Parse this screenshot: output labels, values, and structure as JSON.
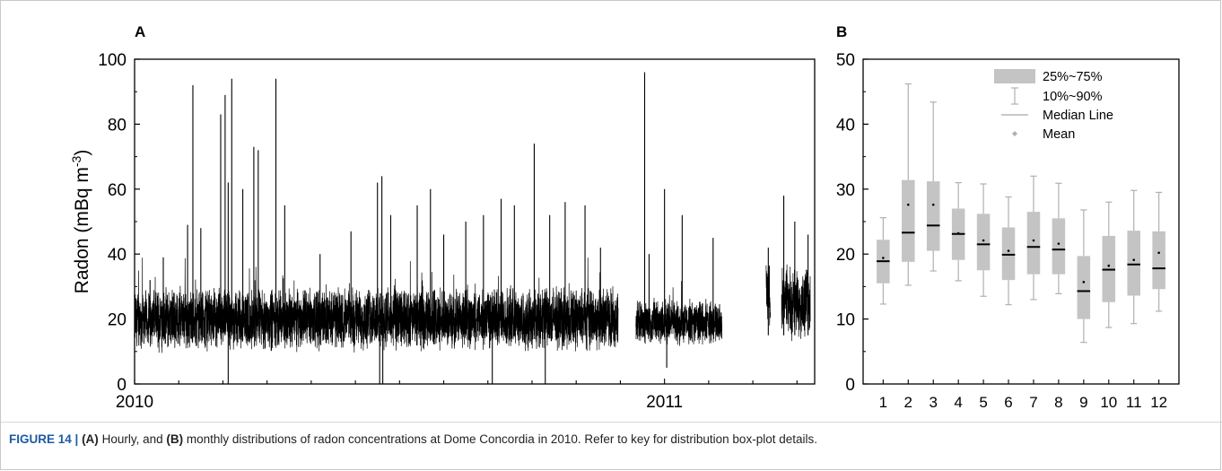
{
  "chart_data": [
    {
      "panel": "A",
      "type": "line",
      "ylabel": "Radon (mBq m-3)",
      "ylabel_main": "Radon (mBq m",
      "ylabel_sup": "-3",
      "ylabel_close": ")",
      "ylim": [
        0,
        100
      ],
      "yticks": [
        "0",
        "20",
        "40",
        "60",
        "80",
        "100"
      ],
      "xticks": [
        "2010",
        "2011"
      ],
      "x_range_months": [
        0,
        15.4
      ],
      "segments": [
        {
          "from": 0.0,
          "to": 10.95,
          "base": 20,
          "noise": 7
        },
        {
          "from": 11.35,
          "to": 13.3,
          "base": 19,
          "noise": 5
        },
        {
          "from": 14.3,
          "to": 14.4,
          "base": 28,
          "noise": 8
        },
        {
          "from": 14.65,
          "to": 15.3,
          "base": 25,
          "noise": 8
        }
      ],
      "spikes": [
        {
          "x": 0.1,
          "y": 20
        },
        {
          "x": 0.35,
          "y": 32
        },
        {
          "x": 0.65,
          "y": 39
        },
        {
          "x": 1.2,
          "y": 49
        },
        {
          "x": 1.32,
          "y": 92
        },
        {
          "x": 1.5,
          "y": 48
        },
        {
          "x": 1.95,
          "y": 83
        },
        {
          "x": 2.05,
          "y": 89
        },
        {
          "x": 2.12,
          "y": 62
        },
        {
          "x": 2.2,
          "y": 94
        },
        {
          "x": 2.45,
          "y": 60
        },
        {
          "x": 2.7,
          "y": 73
        },
        {
          "x": 2.8,
          "y": 72
        },
        {
          "x": 3.2,
          "y": 94
        },
        {
          "x": 3.4,
          "y": 55
        },
        {
          "x": 4.2,
          "y": 40
        },
        {
          "x": 4.9,
          "y": 47
        },
        {
          "x": 5.5,
          "y": 62
        },
        {
          "x": 5.6,
          "y": 64
        },
        {
          "x": 5.8,
          "y": 52
        },
        {
          "x": 6.4,
          "y": 55
        },
        {
          "x": 6.7,
          "y": 60
        },
        {
          "x": 7.0,
          "y": 46
        },
        {
          "x": 7.5,
          "y": 50
        },
        {
          "x": 7.9,
          "y": 52
        },
        {
          "x": 8.3,
          "y": 57
        },
        {
          "x": 8.6,
          "y": 55
        },
        {
          "x": 9.05,
          "y": 74
        },
        {
          "x": 9.4,
          "y": 52
        },
        {
          "x": 9.75,
          "y": 56
        },
        {
          "x": 10.2,
          "y": 55
        },
        {
          "x": 10.55,
          "y": 42
        },
        {
          "x": 11.55,
          "y": 96
        },
        {
          "x": 11.65,
          "y": 40
        },
        {
          "x": 12.0,
          "y": 60
        },
        {
          "x": 12.4,
          "y": 52
        },
        {
          "x": 13.1,
          "y": 45
        },
        {
          "x": 14.35,
          "y": 42
        },
        {
          "x": 14.7,
          "y": 58
        },
        {
          "x": 14.95,
          "y": 50
        },
        {
          "x": 15.25,
          "y": 46
        }
      ],
      "dips": [
        {
          "x": 2.12,
          "y": 0
        },
        {
          "x": 5.55,
          "y": 0
        },
        {
          "x": 5.62,
          "y": 0
        },
        {
          "x": 8.1,
          "y": 0
        },
        {
          "x": 9.3,
          "y": 0
        },
        {
          "x": 12.05,
          "y": 5
        }
      ]
    },
    {
      "panel": "B",
      "type": "box",
      "ylim": [
        0,
        50
      ],
      "yticks": [
        "0",
        "10",
        "20",
        "30",
        "40",
        "50"
      ],
      "categories": [
        "1",
        "2",
        "3",
        "4",
        "5",
        "6",
        "7",
        "8",
        "9",
        "10",
        "11",
        "12"
      ],
      "boxes": [
        {
          "p10": 12.3,
          "q1": 15.5,
          "median": 18.9,
          "q3": 22.2,
          "p90": 25.6,
          "mean": 19.4
        },
        {
          "p10": 15.2,
          "q1": 18.8,
          "median": 23.3,
          "q3": 31.4,
          "p90": 46.2,
          "mean": 27.6
        },
        {
          "p10": 17.4,
          "q1": 20.5,
          "median": 24.4,
          "q3": 31.2,
          "p90": 43.4,
          "mean": 27.6
        },
        {
          "p10": 15.9,
          "q1": 19.1,
          "median": 23.1,
          "q3": 27.0,
          "p90": 31.0,
          "mean": 23.2
        },
        {
          "p10": 13.5,
          "q1": 17.5,
          "median": 21.5,
          "q3": 26.2,
          "p90": 30.8,
          "mean": 22.1
        },
        {
          "p10": 12.2,
          "q1": 16.0,
          "median": 19.9,
          "q3": 24.1,
          "p90": 28.8,
          "mean": 20.5
        },
        {
          "p10": 13.0,
          "q1": 16.9,
          "median": 21.1,
          "q3": 26.5,
          "p90": 32.0,
          "mean": 22.1
        },
        {
          "p10": 13.9,
          "q1": 16.9,
          "median": 20.7,
          "q3": 25.5,
          "p90": 30.9,
          "mean": 21.6
        },
        {
          "p10": 6.4,
          "q1": 10.0,
          "median": 14.3,
          "q3": 19.7,
          "p90": 26.8,
          "mean": 15.7
        },
        {
          "p10": 8.7,
          "q1": 12.6,
          "median": 17.6,
          "q3": 22.8,
          "p90": 28.0,
          "mean": 18.2
        },
        {
          "p10": 9.3,
          "q1": 13.6,
          "median": 18.4,
          "q3": 23.6,
          "p90": 29.8,
          "mean": 19.1
        },
        {
          "p10": 11.2,
          "q1": 14.6,
          "median": 17.8,
          "q3": 23.5,
          "p90": 29.5,
          "mean": 20.2
        }
      ],
      "legend": {
        "placement": "top-right",
        "items": [
          "25%~75%",
          "10%~90%",
          "Median Line",
          "Mean"
        ]
      },
      "colors": {
        "box": "#c4c4c4",
        "whisker": "#b0b0b0",
        "median": "#000000",
        "mean": "#000000"
      }
    }
  ],
  "panel_letters": {
    "a": "A",
    "b": "B"
  },
  "caption": {
    "figure_label": "FIGURE 14 |",
    "part_a_label": "(A)",
    "text_1": " Hourly, and ",
    "part_b_label": "(B)",
    "text_2": " monthly distributions of radon concentrations at Dome Concordia in 2010. Refer to key for distribution box-plot details."
  }
}
